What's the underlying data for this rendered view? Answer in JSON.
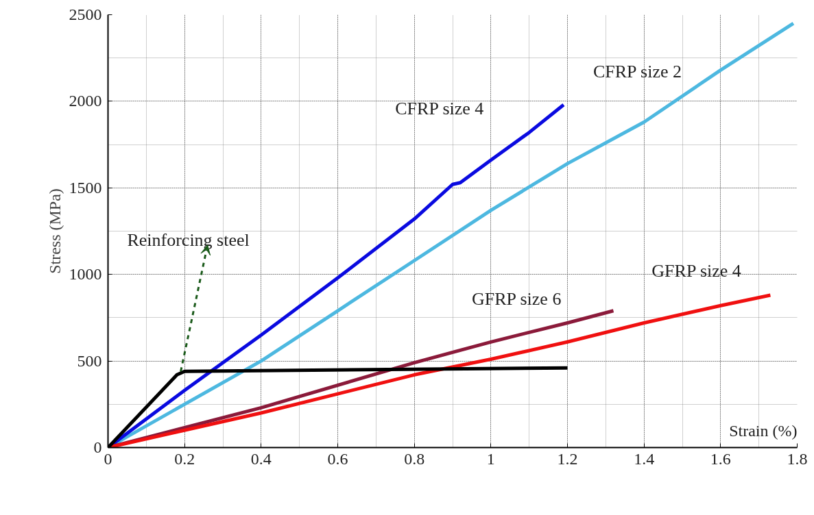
{
  "chart_data": {
    "type": "line",
    "xlabel": "Strain (%)",
    "ylabel": "Stress (MPa)",
    "xlim": [
      0,
      1.8
    ],
    "ylim": [
      0,
      2500
    ],
    "xticks": [
      0,
      0.2,
      0.4,
      0.6,
      0.8,
      1,
      1.2,
      1.4,
      1.6,
      1.8
    ],
    "yticks": [
      0,
      500,
      1000,
      1500,
      2000,
      2500
    ],
    "grid": true,
    "marker": "none",
    "line_style": "solid",
    "series": [
      {
        "name": "CFRP size 2",
        "color": "#4db8e0",
        "x": [
          0,
          0.4,
          0.6,
          0.8,
          1.0,
          1.2,
          1.4,
          1.6,
          1.79
        ],
        "values": [
          0,
          500,
          790,
          1080,
          1370,
          1640,
          1880,
          2180,
          2450
        ]
      },
      {
        "name": "CFRP size 4",
        "color": "#0a0ae0",
        "x": [
          0,
          0.2,
          0.4,
          0.6,
          0.8,
          0.9,
          0.92,
          1.0,
          1.1,
          1.19
        ],
        "values": [
          0,
          330,
          650,
          980,
          1320,
          1520,
          1530,
          1660,
          1820,
          1980
        ]
      },
      {
        "name": "GFRP size 6",
        "color": "#8b1a3a",
        "x": [
          0,
          0.4,
          0.8,
          1.0,
          1.2,
          1.32
        ],
        "values": [
          0,
          230,
          490,
          610,
          720,
          790
        ]
      },
      {
        "name": "GFRP size 4",
        "color": "#f01010",
        "x": [
          0,
          0.4,
          0.8,
          1.0,
          1.2,
          1.4,
          1.6,
          1.73
        ],
        "values": [
          0,
          200,
          420,
          510,
          610,
          720,
          820,
          880
        ]
      },
      {
        "name": "Reinforcing steel",
        "color": "#000000",
        "x": [
          0,
          0.18,
          0.2,
          1.2
        ],
        "values": [
          0,
          420,
          440,
          460
        ]
      }
    ]
  }
}
